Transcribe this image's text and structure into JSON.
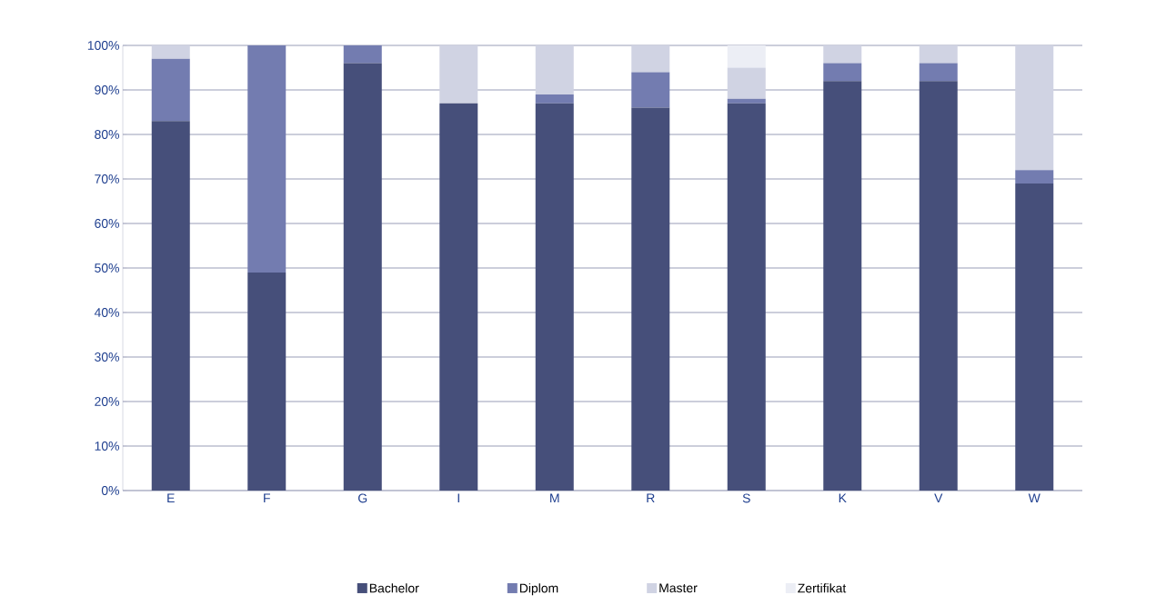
{
  "chart_data": {
    "type": "bar",
    "stacked": true,
    "categories": [
      "E",
      "F",
      "G",
      "I",
      "M",
      "R",
      "S",
      "K",
      "V",
      "W"
    ],
    "series": [
      {
        "name": "Bachelor",
        "color": "#464f7a",
        "values": [
          83,
          49,
          96,
          87,
          87,
          86,
          87,
          92,
          92,
          69
        ]
      },
      {
        "name": "Diplom",
        "color": "#737cb0",
        "values": [
          14,
          51,
          4,
          0,
          2,
          8,
          1,
          4,
          4,
          3
        ]
      },
      {
        "name": "Master",
        "color": "#d0d3e3",
        "values": [
          3,
          0,
          0,
          13,
          11,
          6,
          7,
          4,
          4,
          28
        ]
      },
      {
        "name": "Zertifikat",
        "color": "#eceef5",
        "values": [
          0,
          0,
          0,
          0,
          0,
          0,
          5,
          0,
          0,
          0
        ]
      }
    ],
    "ylim": [
      0,
      100
    ],
    "yticks": [
      {
        "value": 0,
        "label": "0%"
      },
      {
        "value": 10,
        "label": "10%"
      },
      {
        "value": 20,
        "label": "20%"
      },
      {
        "value": 30,
        "label": "30%"
      },
      {
        "value": 40,
        "label": "40%"
      },
      {
        "value": 50,
        "label": "50%"
      },
      {
        "value": 60,
        "label": "60%"
      },
      {
        "value": 70,
        "label": "70%"
      },
      {
        "value": 80,
        "label": "80%"
      },
      {
        "value": 90,
        "label": "90%"
      },
      {
        "value": 100,
        "label": "100%"
      }
    ],
    "grid": "y",
    "legend": "bottom"
  }
}
